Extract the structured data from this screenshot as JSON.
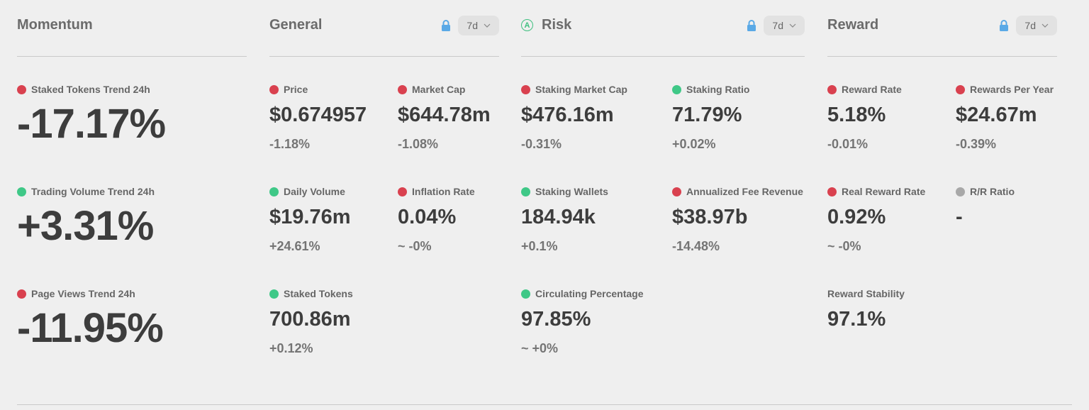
{
  "colors": {
    "negative": "#d9414f",
    "positive": "#3fc887",
    "neutral": "#a8a8a8",
    "lock": "#5aa9e6"
  },
  "momentum": {
    "title": "Momentum",
    "metrics": [
      {
        "label": "Staked Tokens Trend 24h",
        "value": "-17.17%",
        "status": "negative"
      },
      {
        "label": "Trading Volume Trend 24h",
        "value": "+3.31%",
        "status": "positive"
      },
      {
        "label": "Page Views Trend 24h",
        "value": "-11.95%",
        "status": "negative"
      }
    ]
  },
  "general": {
    "title": "General",
    "period": "7d",
    "lock_icon": "lock-icon",
    "metrics": [
      {
        "label": "Price",
        "value": "$0.674957",
        "change": "-1.18%",
        "status": "negative"
      },
      {
        "label": "Market Cap",
        "value": "$644.78m",
        "change": "-1.08%",
        "status": "negative"
      },
      {
        "label": "Daily Volume",
        "value": "$19.76m",
        "change": "+24.61%",
        "status": "positive"
      },
      {
        "label": "Inflation Rate",
        "value": "0.04%",
        "change": "~ -0%",
        "status": "negative"
      },
      {
        "label": "Staked Tokens",
        "value": "700.86m",
        "change": "+0.12%",
        "status": "positive"
      }
    ]
  },
  "risk": {
    "title": "Risk",
    "badge": "A",
    "period": "7d",
    "lock_icon": "lock-icon",
    "metrics": [
      {
        "label": "Staking Market Cap",
        "value": "$476.16m",
        "change": "-0.31%",
        "status": "negative"
      },
      {
        "label": "Staking Ratio",
        "value": "71.79%",
        "change": "+0.02%",
        "status": "positive"
      },
      {
        "label": "Staking Wallets",
        "value": "184.94k",
        "change": "+0.1%",
        "status": "positive"
      },
      {
        "label": "Annualized Fee Revenue",
        "value": "$38.97b",
        "change": "-14.48%",
        "status": "negative"
      },
      {
        "label": "Circulating Percentage",
        "value": "97.85%",
        "change": "~ +0%",
        "status": "positive"
      }
    ]
  },
  "reward": {
    "title": "Reward",
    "period": "7d",
    "lock_icon": "lock-icon",
    "metrics": [
      {
        "label": "Reward Rate",
        "value": "5.18%",
        "change": "-0.01%",
        "status": "negative"
      },
      {
        "label": "Rewards Per Year",
        "value": "$24.67m",
        "change": "-0.39%",
        "status": "negative"
      },
      {
        "label": "Real Reward Rate",
        "value": "0.92%",
        "change": "~ -0%",
        "status": "negative"
      },
      {
        "label": "R/R Ratio",
        "value": "-",
        "change": "",
        "status": "neutral"
      },
      {
        "label": "Reward Stability",
        "value": "97.1%",
        "change": "",
        "status": "none"
      }
    ]
  }
}
